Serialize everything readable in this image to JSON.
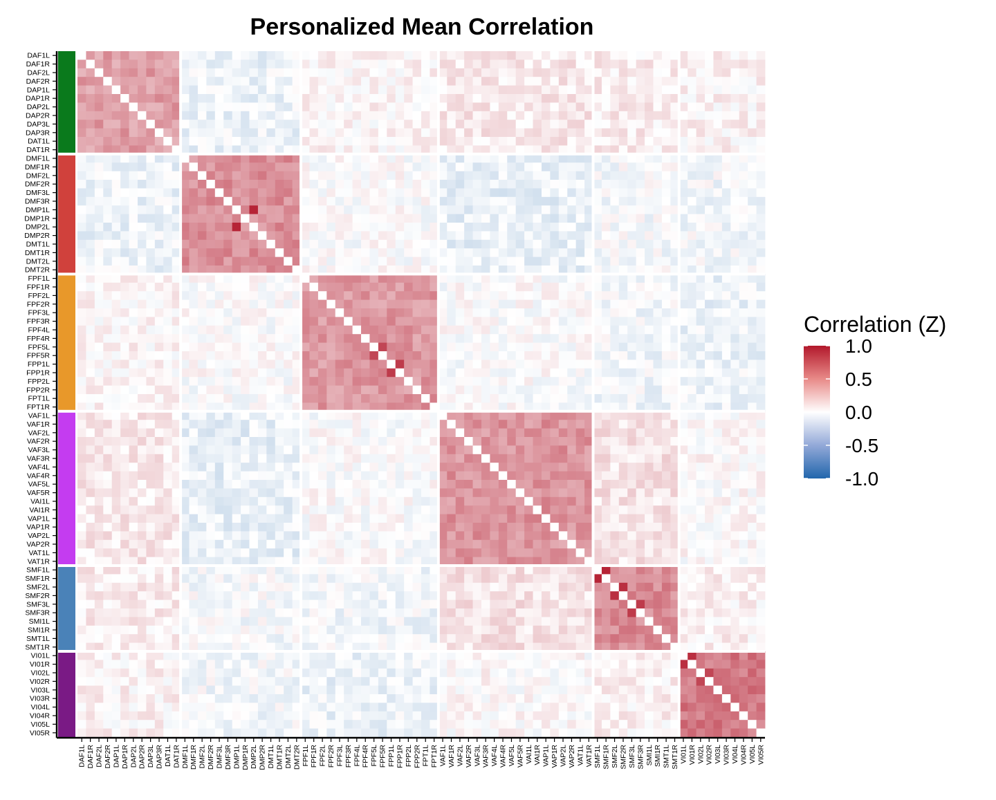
{
  "chart_data": {
    "type": "heatmap",
    "title": "Personalized Mean Correlation",
    "labels": [
      "DAF1L",
      "DAF1R",
      "DAF2L",
      "DAF2R",
      "DAP1L",
      "DAP1R",
      "DAP2L",
      "DAP2R",
      "DAP3L",
      "DAP3R",
      "DAT1L",
      "DAT1R",
      "DMF1L",
      "DMF1R",
      "DMF2L",
      "DMF2R",
      "DMF3L",
      "DMF3R",
      "DMP1L",
      "DMP1R",
      "DMP2L",
      "DMP2R",
      "DMT1L",
      "DMT1R",
      "DMT2L",
      "DMT2R",
      "FPF1L",
      "FPF1R",
      "FPF2L",
      "FPF2R",
      "FPF3L",
      "FPF3R",
      "FPF4L",
      "FPF4R",
      "FPF5L",
      "FPF5R",
      "FPP1L",
      "FPP1R",
      "FPP2L",
      "FPP2R",
      "FPT1L",
      "FPT1R",
      "VAF1L",
      "VAF1R",
      "VAF2L",
      "VAF2R",
      "VAF3L",
      "VAF3R",
      "VAF4L",
      "VAF4R",
      "VAF5L",
      "VAF5R",
      "VAI1L",
      "VAI1R",
      "VAP1L",
      "VAP1R",
      "VAP2L",
      "VAP2R",
      "VAT1L",
      "VAT1R",
      "SMF1L",
      "SMF1R",
      "SMF2L",
      "SMF2R",
      "SMF3L",
      "SMF3R",
      "SMI1L",
      "SMI1R",
      "SMT1L",
      "SMT1R",
      "VI01L",
      "VI01R",
      "VI02L",
      "VI02R",
      "VI03L",
      "VI03R",
      "VI04L",
      "VI04R",
      "VI05L",
      "VI05R"
    ],
    "groups": [
      {
        "prefix": "DA",
        "count": 12,
        "color": "#0a7a1c"
      },
      {
        "prefix": "DM",
        "count": 14,
        "color": "#d0413c"
      },
      {
        "prefix": "FP",
        "count": 16,
        "color": "#e8982a"
      },
      {
        "prefix": "VA",
        "count": 18,
        "color": "#c43cf0"
      },
      {
        "prefix": "SM",
        "count": 10,
        "color": "#4a82b8"
      },
      {
        "prefix": "VI",
        "count": 10,
        "color": "#7a1a85"
      }
    ],
    "block_means": [
      [
        0.42,
        -0.08,
        0.04,
        0.1,
        0.08,
        0.05
      ],
      [
        -0.08,
        0.48,
        0.0,
        -0.1,
        -0.03,
        -0.04
      ],
      [
        0.04,
        0.0,
        0.45,
        0.0,
        -0.05,
        -0.08
      ],
      [
        0.1,
        -0.1,
        0.0,
        0.46,
        0.12,
        0.02
      ],
      [
        0.08,
        -0.03,
        -0.05,
        0.12,
        0.5,
        0.06
      ],
      [
        0.05,
        -0.04,
        -0.08,
        0.02,
        0.06,
        0.58
      ]
    ],
    "strong_pairs": [
      [
        "DMP1L",
        "DMP2L",
        0.95
      ],
      [
        "FPF5L",
        "FPF5R",
        0.8
      ],
      [
        "FPP1L",
        "FPP1R",
        0.85
      ],
      [
        "SMF1L",
        "SMF1R",
        0.95
      ],
      [
        "SMF2L",
        "SMF2R",
        0.9
      ],
      [
        "SMF3L",
        "SMF3R",
        0.85
      ],
      [
        "VI01L",
        "VI01R",
        0.9
      ],
      [
        "VI02L",
        "VI02R",
        0.8
      ]
    ],
    "color_scale": {
      "title": "Correlation (Z)",
      "ticks": [
        "1.0",
        "0.5",
        "0.0",
        "-0.5",
        "-1.0"
      ],
      "range": [
        -1.0,
        1.0
      ],
      "low_color": "#2166ac",
      "mid_color": "#ffffff",
      "high_color": "#b2182b"
    },
    "grid": false,
    "legend_position": "right"
  }
}
